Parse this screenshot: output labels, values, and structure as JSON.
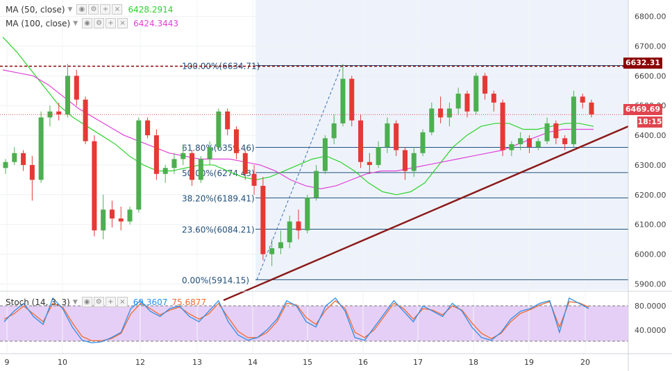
{
  "legends": {
    "ma50": {
      "label": "MA (50, close)",
      "value": "6428.2914",
      "color": "#2bd32b"
    },
    "ma100": {
      "label": "MA (100, close)",
      "value": "6424.3443",
      "color": "#e040d8"
    },
    "stoch": {
      "label": "Stoch (14, 3, 3)",
      "k": "69.3607",
      "d": "75.6877",
      "k_color": "#2a8ee8",
      "d_color": "#f06a30"
    }
  },
  "buttons": [
    "eye-icon",
    "gear-icon",
    "plus-icon",
    "close-icon"
  ],
  "price_boxes": {
    "top": {
      "label": "6632.31",
      "color": "#8b0000"
    },
    "current": {
      "label": "6469.69",
      "color": "#e0454f"
    },
    "countdown": {
      "label": "18:15",
      "color": "#e0454f"
    }
  },
  "chart_data": {
    "type": "candlestick",
    "y_axis": {
      "ticks": [
        "6800.00",
        "6700.00",
        "6600.00",
        "6500.00",
        "6400.00",
        "6300.00",
        "6200.00",
        "6100.00",
        "6000.00",
        "5900.00"
      ],
      "range": [
        5880,
        6855
      ]
    },
    "x_axis": {
      "ticks": [
        "9",
        "10",
        "12",
        "13",
        "14",
        "15",
        "16",
        "17",
        "18",
        "19",
        "20"
      ]
    },
    "fibonacci": [
      {
        "label": "100.00%(6634.71)",
        "price": 6634.71
      },
      {
        "label": "61.80%(6359.46)",
        "price": 6359.46
      },
      {
        "label": "50.00%(6274.43)",
        "price": 6274.43
      },
      {
        "label": "38.20%(6189.41)",
        "price": 6189.41
      },
      {
        "label": "23.60%(6084.21)",
        "price": 6084.21
      },
      {
        "label": "0.00%(5914.15)",
        "price": 5914.15
      }
    ],
    "resistance_line": 6632.31,
    "current_price": 6469.69,
    "trendline": {
      "from_price": 5845,
      "to_price": 6430
    },
    "ma50": [
      6730,
      6680,
      6620,
      6560,
      6500,
      6460,
      6430,
      6400,
      6370,
      6330,
      6300,
      6280,
      6280,
      6290,
      6300,
      6300,
      6280,
      6260,
      6250,
      6260,
      6280,
      6300,
      6320,
      6330,
      6310,
      6280,
      6240,
      6210,
      6200,
      6210,
      6240,
      6300,
      6360,
      6400,
      6430,
      6440,
      6440,
      6420,
      6420,
      6430,
      6440,
      6440,
      6430
    ],
    "ma100": [
      6620,
      6610,
      6600,
      6570,
      6530,
      6490,
      6460,
      6430,
      6400,
      6380,
      6360,
      6340,
      6330,
      6320,
      6320,
      6320,
      6310,
      6300,
      6280,
      6250,
      6230,
      6220,
      6230,
      6250,
      6270,
      6280,
      6280,
      6290,
      6300,
      6310,
      6320,
      6330,
      6340,
      6350,
      6370,
      6390,
      6410,
      6420,
      6420,
      6420
    ],
    "candles": [
      {
        "o": 6290,
        "h": 6320,
        "l": 6270,
        "c": 6310
      },
      {
        "o": 6310,
        "h": 6360,
        "l": 6300,
        "c": 6340
      },
      {
        "o": 6340,
        "h": 6350,
        "l": 6280,
        "c": 6300
      },
      {
        "o": 6300,
        "h": 6330,
        "l": 6180,
        "c": 6250
      },
      {
        "o": 6250,
        "h": 6480,
        "l": 6240,
        "c": 6460
      },
      {
        "o": 6460,
        "h": 6500,
        "l": 6430,
        "c": 6480
      },
      {
        "o": 6480,
        "h": 6510,
        "l": 6450,
        "c": 6470
      },
      {
        "o": 6470,
        "h": 6640,
        "l": 6460,
        "c": 6600
      },
      {
        "o": 6600,
        "h": 6620,
        "l": 6500,
        "c": 6520
      },
      {
        "o": 6520,
        "h": 6530,
        "l": 6370,
        "c": 6380
      },
      {
        "o": 6380,
        "h": 6400,
        "l": 6060,
        "c": 6080
      },
      {
        "o": 6080,
        "h": 6200,
        "l": 6050,
        "c": 6150
      },
      {
        "o": 6150,
        "h": 6180,
        "l": 6090,
        "c": 6120
      },
      {
        "o": 6120,
        "h": 6160,
        "l": 6080,
        "c": 6110
      },
      {
        "o": 6110,
        "h": 6160,
        "l": 6100,
        "c": 6150
      },
      {
        "o": 6150,
        "h": 6460,
        "l": 6140,
        "c": 6450
      },
      {
        "o": 6450,
        "h": 6460,
        "l": 6390,
        "c": 6400
      },
      {
        "o": 6400,
        "h": 6420,
        "l": 6250,
        "c": 6270
      },
      {
        "o": 6270,
        "h": 6300,
        "l": 6240,
        "c": 6290
      },
      {
        "o": 6290,
        "h": 6340,
        "l": 6270,
        "c": 6320
      },
      {
        "o": 6320,
        "h": 6370,
        "l": 6300,
        "c": 6340
      },
      {
        "o": 6340,
        "h": 6350,
        "l": 6230,
        "c": 6250
      },
      {
        "o": 6250,
        "h": 6330,
        "l": 6240,
        "c": 6320
      },
      {
        "o": 6320,
        "h": 6380,
        "l": 6300,
        "c": 6360
      },
      {
        "o": 6360,
        "h": 6490,
        "l": 6350,
        "c": 6480
      },
      {
        "o": 6480,
        "h": 6490,
        "l": 6400,
        "c": 6420
      },
      {
        "o": 6420,
        "h": 6430,
        "l": 6320,
        "c": 6340
      },
      {
        "o": 6340,
        "h": 6350,
        "l": 6250,
        "c": 6270
      },
      {
        "o": 6270,
        "h": 6300,
        "l": 6200,
        "c": 6230
      },
      {
        "o": 6230,
        "h": 6260,
        "l": 5980,
        "c": 6000
      },
      {
        "o": 6000,
        "h": 6050,
        "l": 5960,
        "c": 6020
      },
      {
        "o": 6020,
        "h": 6080,
        "l": 6000,
        "c": 6040
      },
      {
        "o": 6040,
        "h": 6130,
        "l": 6020,
        "c": 6110
      },
      {
        "o": 6110,
        "h": 6150,
        "l": 6050,
        "c": 6080
      },
      {
        "o": 6080,
        "h": 6200,
        "l": 6070,
        "c": 6190
      },
      {
        "o": 6190,
        "h": 6300,
        "l": 6180,
        "c": 6280
      },
      {
        "o": 6280,
        "h": 6400,
        "l": 6270,
        "c": 6390
      },
      {
        "o": 6390,
        "h": 6470,
        "l": 6370,
        "c": 6440
      },
      {
        "o": 6440,
        "h": 6640,
        "l": 6430,
        "c": 6590
      },
      {
        "o": 6590,
        "h": 6600,
        "l": 6430,
        "c": 6450
      },
      {
        "o": 6450,
        "h": 6470,
        "l": 6290,
        "c": 6310
      },
      {
        "o": 6310,
        "h": 6340,
        "l": 6270,
        "c": 6300
      },
      {
        "o": 6300,
        "h": 6380,
        "l": 6290,
        "c": 6360
      },
      {
        "o": 6360,
        "h": 6460,
        "l": 6340,
        "c": 6440
      },
      {
        "o": 6440,
        "h": 6450,
        "l": 6330,
        "c": 6350
      },
      {
        "o": 6350,
        "h": 6360,
        "l": 6250,
        "c": 6280
      },
      {
        "o": 6280,
        "h": 6360,
        "l": 6260,
        "c": 6340
      },
      {
        "o": 6340,
        "h": 6420,
        "l": 6330,
        "c": 6410
      },
      {
        "o": 6410,
        "h": 6510,
        "l": 6400,
        "c": 6490
      },
      {
        "o": 6490,
        "h": 6530,
        "l": 6440,
        "c": 6460
      },
      {
        "o": 6460,
        "h": 6510,
        "l": 6430,
        "c": 6490
      },
      {
        "o": 6490,
        "h": 6560,
        "l": 6470,
        "c": 6540
      },
      {
        "o": 6540,
        "h": 6550,
        "l": 6460,
        "c": 6480
      },
      {
        "o": 6480,
        "h": 6610,
        "l": 6470,
        "c": 6600
      },
      {
        "o": 6600,
        "h": 6610,
        "l": 6520,
        "c": 6540
      },
      {
        "o": 6540,
        "h": 6550,
        "l": 6480,
        "c": 6510
      },
      {
        "o": 6510,
        "h": 6520,
        "l": 6330,
        "c": 6350
      },
      {
        "o": 6350,
        "h": 6380,
        "l": 6330,
        "c": 6370
      },
      {
        "o": 6370,
        "h": 6410,
        "l": 6350,
        "c": 6390
      },
      {
        "o": 6390,
        "h": 6400,
        "l": 6340,
        "c": 6360
      },
      {
        "o": 6360,
        "h": 6390,
        "l": 6350,
        "c": 6380
      },
      {
        "o": 6380,
        "h": 6460,
        "l": 6370,
        "c": 6440
      },
      {
        "o": 6440,
        "h": 6450,
        "l": 6370,
        "c": 6390
      },
      {
        "o": 6390,
        "h": 6400,
        "l": 6350,
        "c": 6370
      },
      {
        "o": 6370,
        "h": 6550,
        "l": 6360,
        "c": 6530
      },
      {
        "o": 6530,
        "h": 6540,
        "l": 6490,
        "c": 6510
      },
      {
        "o": 6510,
        "h": 6520,
        "l": 6460,
        "c": 6470
      }
    ],
    "stoch_axis": {
      "ticks": [
        "80.0000",
        "40.0000"
      ]
    },
    "stoch_k": [
      50,
      70,
      85,
      60,
      45,
      95,
      75,
      40,
      15,
      10,
      12,
      20,
      30,
      75,
      90,
      70,
      60,
      75,
      80,
      60,
      50,
      70,
      90,
      50,
      25,
      15,
      20,
      35,
      55,
      90,
      80,
      50,
      40,
      80,
      95,
      70,
      20,
      15,
      40,
      65,
      90,
      70,
      50,
      80,
      70,
      60,
      85,
      70,
      40,
      20,
      15,
      30,
      55,
      70,
      75,
      85,
      90,
      30,
      95,
      85,
      75
    ],
    "stoch_d": [
      55,
      65,
      80,
      65,
      50,
      85,
      78,
      48,
      22,
      14,
      14,
      18,
      28,
      65,
      85,
      75,
      63,
      72,
      78,
      65,
      55,
      65,
      85,
      58,
      32,
      20,
      20,
      30,
      50,
      85,
      82,
      58,
      45,
      72,
      90,
      75,
      30,
      20,
      35,
      60,
      85,
      75,
      55,
      75,
      72,
      63,
      80,
      72,
      48,
      28,
      18,
      28,
      50,
      66,
      73,
      82,
      88,
      40,
      88,
      86,
      78
    ]
  }
}
